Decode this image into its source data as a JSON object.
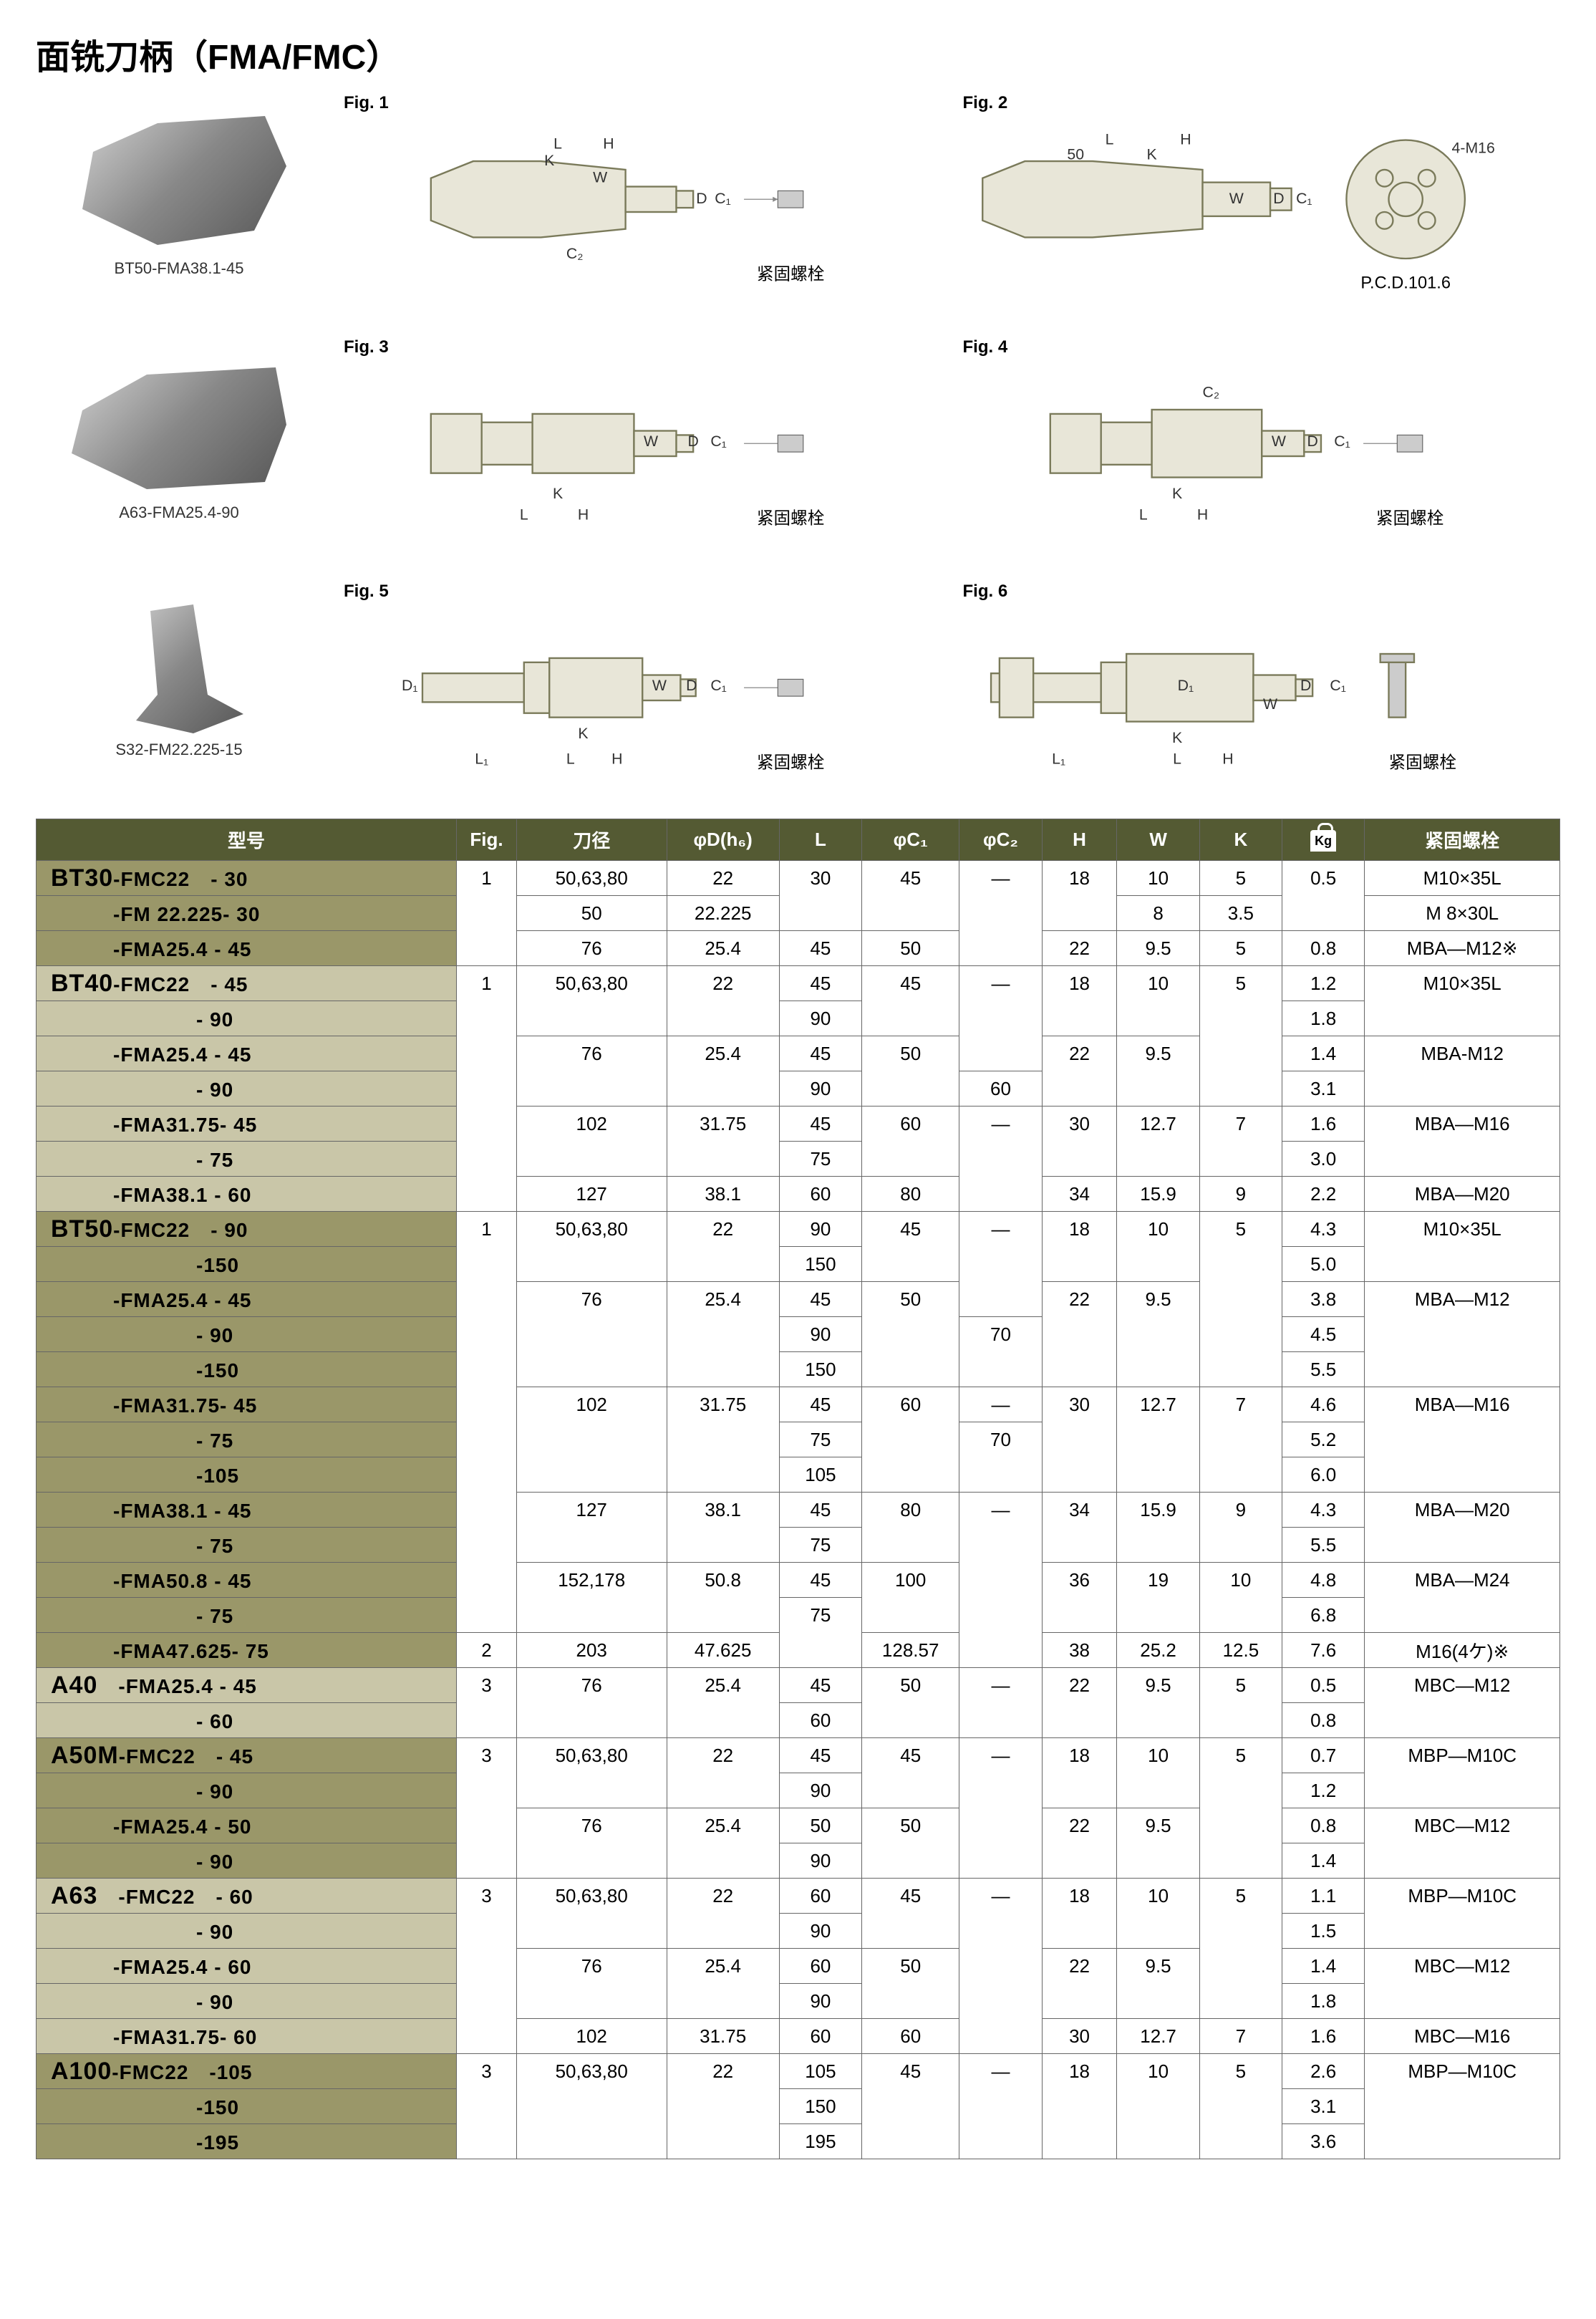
{
  "title": "面铣刀柄（FMA/FMC）",
  "products": [
    {
      "label": "BT50-FMA38.1-45"
    },
    {
      "label": "A63-FMA25.4-90"
    },
    {
      "label": "S32-FM22.225-15"
    }
  ],
  "figures": [
    {
      "label": "Fig. 1",
      "caption": "紧固螺栓",
      "dims": [
        "L",
        "H",
        "K",
        "W",
        "D",
        "C₁",
        "C₂"
      ]
    },
    {
      "label": "Fig. 2",
      "caption": "P.C.D.101.6",
      "extra": "4-M16",
      "dims": [
        "L",
        "H",
        "50",
        "K",
        "W",
        "D",
        "C₁"
      ]
    },
    {
      "label": "Fig. 3",
      "caption": "紧固螺栓",
      "dims": [
        "L",
        "H",
        "K",
        "W",
        "D",
        "C₁"
      ]
    },
    {
      "label": "Fig. 4",
      "caption": "紧固螺栓",
      "dims": [
        "L",
        "H",
        "K",
        "W",
        "D",
        "C₁",
        "C₂"
      ]
    },
    {
      "label": "Fig. 5",
      "caption": "紧固螺栓",
      "dims": [
        "L₁",
        "L",
        "H",
        "K",
        "W",
        "D",
        "D₁",
        "C₁"
      ]
    },
    {
      "label": "Fig. 6",
      "caption": "紧固螺栓",
      "dims": [
        "L₁",
        "L",
        "H",
        "K",
        "W",
        "D",
        "D₁",
        "C₁"
      ]
    }
  ],
  "table": {
    "header_bg": "#545a33",
    "group_bg_a": "#9a9769",
    "group_bg_b": "#c9c6a8",
    "columns": [
      "型号",
      "Fig.",
      "刀径",
      "φD(h₆)",
      "L",
      "φC₁",
      "φC₂",
      "H",
      "W",
      "K",
      "Kg",
      "紧固螺栓"
    ],
    "col_widths": [
      "560",
      "80",
      "200",
      "150",
      "110",
      "130",
      "110",
      "100",
      "110",
      "110",
      "110",
      "260"
    ],
    "rows": [
      {
        "g": "a",
        "model": "BT30-FMC22　- 30",
        "series": "BT30",
        "fig": "1",
        "dia": "50,63,80",
        "d": "22",
        "l": "30",
        "c1": "45",
        "c2": "—",
        "h": "18",
        "w": "10",
        "k": "5",
        "kg": "0.5",
        "bolt": "M10×35L"
      },
      {
        "g": "a",
        "model": "　　　-FM 22.225- 30",
        "dia": "50",
        "d": "22.225",
        "w": "8",
        "k": "3.5",
        "bolt": "M 8×30L"
      },
      {
        "g": "a",
        "model": "　　　-FMA25.4 - 45",
        "dia": "76",
        "d": "25.4",
        "l": "45",
        "c1": "50",
        "h": "22",
        "w": "9.5",
        "k": "5",
        "kg": "0.8",
        "bolt": "MBA—M12※"
      },
      {
        "g": "b",
        "model": "BT40-FMC22　- 45",
        "series": "BT40",
        "fig": "1",
        "dia": "50,63,80",
        "d": "22",
        "l": "45",
        "c1": "45",
        "c2": "—",
        "h": "18",
        "w": "10",
        "k": "5",
        "kg": "1.2",
        "bolt": "M10×35L"
      },
      {
        "g": "b",
        "model": "　　　　　　　- 90",
        "l": "90",
        "kg": "1.8"
      },
      {
        "g": "b",
        "model": "　　　-FMA25.4 - 45",
        "dia": "76",
        "d": "25.4",
        "l": "45",
        "c1": "50",
        "h": "22",
        "w": "9.5",
        "kg": "1.4",
        "bolt": "MBA-M12"
      },
      {
        "g": "b",
        "model": "　　　　　　　- 90",
        "l": "90",
        "c2": "60",
        "kg": "3.1"
      },
      {
        "g": "b",
        "model": "　　　-FMA31.75- 45",
        "dia": "102",
        "d": "31.75",
        "l": "45",
        "c1": "60",
        "c2": "—",
        "h": "30",
        "w": "12.7",
        "k": "7",
        "kg": "1.6",
        "bolt": "MBA—M16"
      },
      {
        "g": "b",
        "model": "　　　　　　　- 75",
        "l": "75",
        "kg": "3.0"
      },
      {
        "g": "b",
        "model": "　　　-FMA38.1 - 60",
        "dia": "127",
        "d": "38.1",
        "l": "60",
        "c1": "80",
        "h": "34",
        "w": "15.9",
        "k": "9",
        "kg": "2.2",
        "bolt": "MBA—M20"
      },
      {
        "g": "a",
        "model": "BT50-FMC22　- 90",
        "series": "BT50",
        "fig": "1",
        "dia": "50,63,80",
        "d": "22",
        "l": "90",
        "c1": "45",
        "c2": "—",
        "h": "18",
        "w": "10",
        "k": "5",
        "kg": "4.3",
        "bolt": "M10×35L"
      },
      {
        "g": "a",
        "model": "　　　　　　　-150",
        "l": "150",
        "kg": "5.0"
      },
      {
        "g": "a",
        "model": "　　　-FMA25.4 - 45",
        "dia": "76",
        "d": "25.4",
        "l": "45",
        "c1": "50",
        "h": "22",
        "w": "9.5",
        "kg": "3.8",
        "bolt": "MBA—M12"
      },
      {
        "g": "a",
        "model": "　　　　　　　- 90",
        "l": "90",
        "c2": "70",
        "kg": "4.5"
      },
      {
        "g": "a",
        "model": "　　　　　　　-150",
        "l": "150",
        "kg": "5.5"
      },
      {
        "g": "a",
        "model": "　　　-FMA31.75- 45",
        "dia": "102",
        "d": "31.75",
        "l": "45",
        "c1": "60",
        "c2": "—",
        "h": "30",
        "w": "12.7",
        "k": "7",
        "kg": "4.6",
        "bolt": "MBA—M16"
      },
      {
        "g": "a",
        "model": "　　　　　　　- 75",
        "l": "75",
        "c2": "70",
        "kg": "5.2"
      },
      {
        "g": "a",
        "model": "　　　　　　　-105",
        "l": "105",
        "kg": "6.0"
      },
      {
        "g": "a",
        "model": "　　　-FMA38.1 - 45",
        "dia": "127",
        "d": "38.1",
        "l": "45",
        "c1": "80",
        "c2": "—",
        "h": "34",
        "w": "15.9",
        "k": "9",
        "kg": "4.3",
        "bolt": "MBA—M20"
      },
      {
        "g": "a",
        "model": "　　　　　　　- 75",
        "l": "75",
        "kg": "5.5"
      },
      {
        "g": "a",
        "model": "　　　-FMA50.8 - 45",
        "dia": "152,178",
        "d": "50.8",
        "l": "45",
        "c1": "100",
        "h": "36",
        "w": "19",
        "k": "10",
        "kg": "4.8",
        "bolt": "MBA—M24"
      },
      {
        "g": "a",
        "model": "　　　　　　　- 75",
        "l": "75",
        "kg": "6.8"
      },
      {
        "g": "a",
        "model": "　　　-FMA47.625- 75",
        "fig": "2",
        "dia": "203",
        "d": "47.625",
        "c1": "128.57",
        "h": "38",
        "w": "25.2",
        "k": "12.5",
        "kg": "7.6",
        "bolt": "M16(4ケ)※"
      },
      {
        "g": "b",
        "model": "A40　-FMA25.4 - 45",
        "series": "A40",
        "fig": "3",
        "dia": "76",
        "d": "25.4",
        "l": "45",
        "c1": "50",
        "c2": "—",
        "h": "22",
        "w": "9.5",
        "k": "5",
        "kg": "0.5",
        "bolt": "MBC—M12"
      },
      {
        "g": "b",
        "model": "　　　　　　　- 60",
        "l": "60",
        "kg": "0.8"
      },
      {
        "g": "a",
        "model": "A50M-FMC22　- 45",
        "series": "A50M",
        "fig": "3",
        "dia": "50,63,80",
        "d": "22",
        "l": "45",
        "c1": "45",
        "c2": "—",
        "h": "18",
        "w": "10",
        "k": "5",
        "kg": "0.7",
        "bolt": "MBP—M10C"
      },
      {
        "g": "a",
        "model": "　　　　　　　- 90",
        "l": "90",
        "kg": "1.2"
      },
      {
        "g": "a",
        "model": "　　　-FMA25.4 - 50",
        "dia": "76",
        "d": "25.4",
        "l": "50",
        "c1": "50",
        "h": "22",
        "w": "9.5",
        "kg": "0.8",
        "bolt": "MBC—M12"
      },
      {
        "g": "a",
        "model": "　　　　　　　- 90",
        "l": "90",
        "kg": "1.4"
      },
      {
        "g": "b",
        "model": "A63　-FMC22　- 60",
        "series": "A63",
        "fig": "3",
        "dia": "50,63,80",
        "d": "22",
        "l": "60",
        "c1": "45",
        "c2": "—",
        "h": "18",
        "w": "10",
        "k": "5",
        "kg": "1.1",
        "bolt": "MBP—M10C"
      },
      {
        "g": "b",
        "model": "　　　　　　　- 90",
        "l": "90",
        "kg": "1.5"
      },
      {
        "g": "b",
        "model": "　　　-FMA25.4 - 60",
        "dia": "76",
        "d": "25.4",
        "l": "60",
        "c1": "50",
        "h": "22",
        "w": "9.5",
        "kg": "1.4",
        "bolt": "MBC—M12"
      },
      {
        "g": "b",
        "model": "　　　　　　　- 90",
        "l": "90",
        "kg": "1.8"
      },
      {
        "g": "b",
        "model": "　　　-FMA31.75- 60",
        "dia": "102",
        "d": "31.75",
        "l": "60",
        "c1": "60",
        "h": "30",
        "w": "12.7",
        "k": "7",
        "kg": "1.6",
        "bolt": "MBC—M16"
      },
      {
        "g": "a",
        "model": "A100-FMC22　-105",
        "series": "A100",
        "fig": "3",
        "dia": "50,63,80",
        "d": "22",
        "l": "105",
        "c1": "45",
        "c2": "—",
        "h": "18",
        "w": "10",
        "k": "5",
        "kg": "2.6",
        "bolt": "MBP—M10C"
      },
      {
        "g": "a",
        "model": "　　　　　　　-150",
        "l": "150",
        "kg": "3.1"
      },
      {
        "g": "a",
        "model": "　　　　　　　-195",
        "l": "195",
        "kg": "3.6"
      }
    ]
  }
}
